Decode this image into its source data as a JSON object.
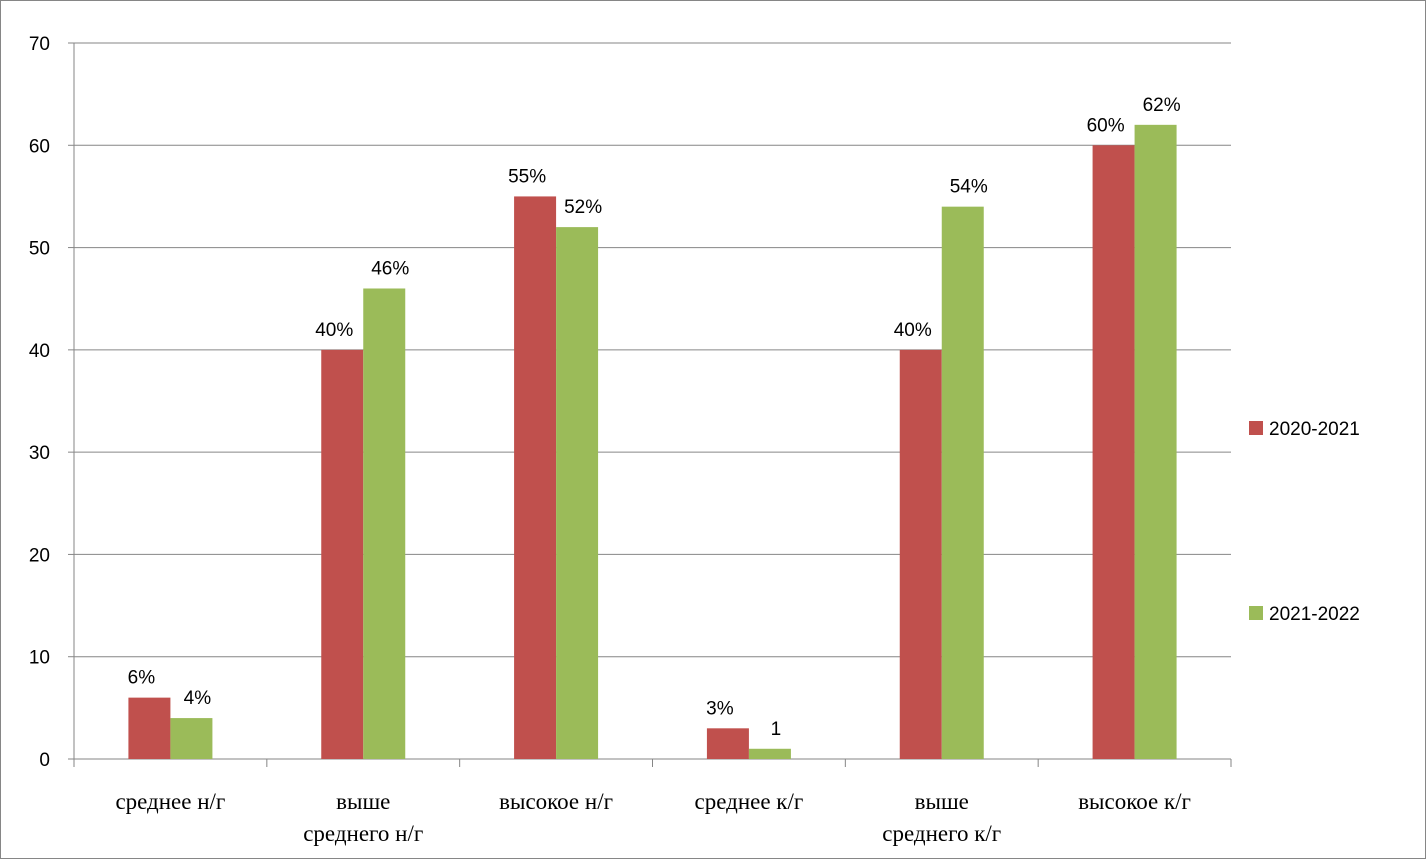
{
  "chart_data": {
    "type": "bar",
    "categories": [
      [
        "среднее н/г"
      ],
      [
        "выше",
        "среднего н/г"
      ],
      [
        "высокое н/г"
      ],
      [
        "среднее к/г"
      ],
      [
        "выше",
        "среднего к/г"
      ],
      [
        "высокое к/г"
      ]
    ],
    "series": [
      {
        "name": "2020-2021",
        "color": "#C0504D",
        "values": [
          6,
          40,
          55,
          3,
          40,
          60
        ],
        "labels": [
          "6%",
          "40%",
          "55%",
          "3%",
          "40%",
          "60%"
        ]
      },
      {
        "name": "2021-2022",
        "color": "#9BBB59",
        "values": [
          4,
          46,
          52,
          1,
          54,
          62
        ],
        "labels": [
          "4%",
          "46%",
          "52%",
          "1",
          "54%",
          "62%"
        ]
      }
    ],
    "ylim": [
      0,
      70
    ],
    "yticks": [
      0,
      10,
      20,
      30,
      40,
      50,
      60,
      70
    ],
    "grid": true,
    "legend_position": "right",
    "title": "",
    "xlabel": "",
    "ylabel": ""
  }
}
